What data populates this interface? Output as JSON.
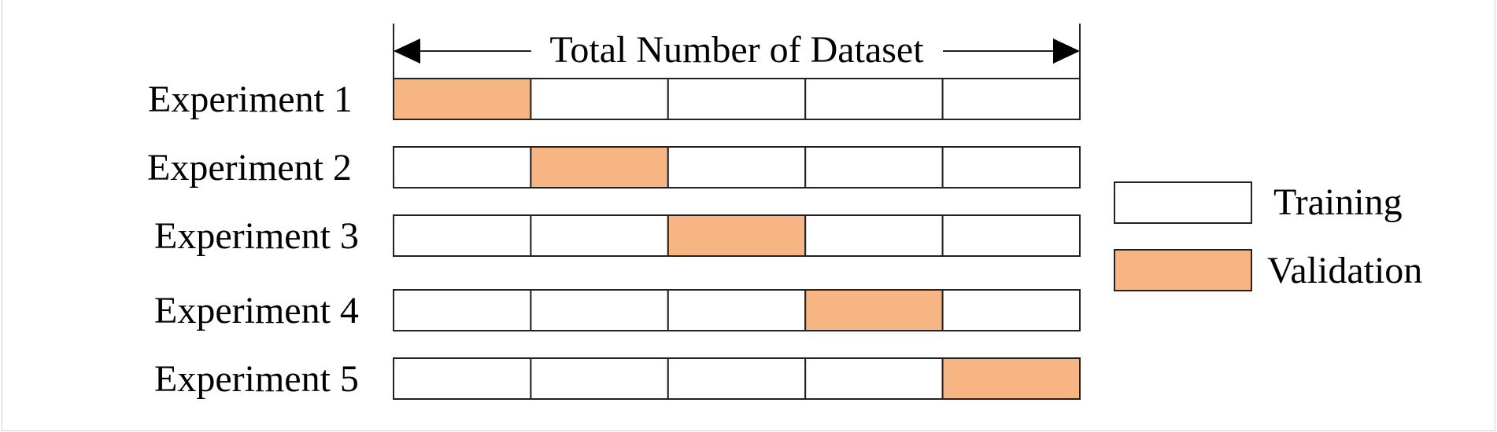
{
  "title": "Total Number of Dataset",
  "experiments": [
    {
      "label": "Experiment 1",
      "validation_fold": 1
    },
    {
      "label": "Experiment 2",
      "validation_fold": 2
    },
    {
      "label": "Experiment 3",
      "validation_fold": 3
    },
    {
      "label": "Experiment 4",
      "validation_fold": 4
    },
    {
      "label": "Experiment 5",
      "validation_fold": 5
    }
  ],
  "folds_per_experiment": 5,
  "legend": {
    "training": {
      "label": "Training",
      "color": "#ffffff"
    },
    "validation": {
      "label": "Validation",
      "color": "#f7b583"
    }
  },
  "colors": {
    "stroke": "#222222"
  }
}
